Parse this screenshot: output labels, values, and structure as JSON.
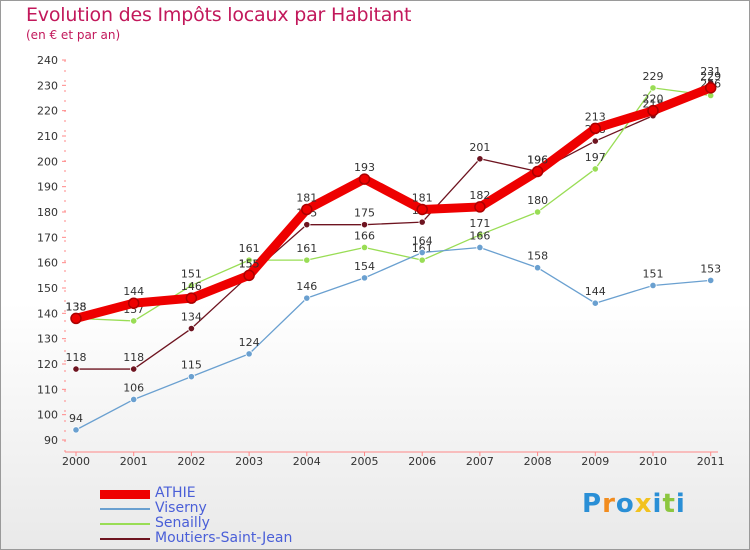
{
  "chart_data": {
    "type": "line",
    "title": "Evolution des Impôts locaux par Habitant",
    "subtitle": "(en € et par an)",
    "categories": [
      "2000",
      "2001",
      "2002",
      "2003",
      "2004",
      "2005",
      "2006",
      "2007",
      "2008",
      "2009",
      "2010",
      "2011"
    ],
    "ylim": [
      90,
      240
    ],
    "yticks": [
      90,
      100,
      110,
      120,
      130,
      140,
      150,
      160,
      170,
      180,
      190,
      200,
      210,
      220,
      230,
      240
    ],
    "series": [
      {
        "name": "Moutiers-Saint-Jean",
        "color": "#6e1420",
        "values": [
          118,
          118,
          134,
          155,
          175,
          175,
          176,
          201,
          196,
          208,
          218,
          231
        ]
      },
      {
        "name": "Senailly",
        "color": "#99dd55",
        "values": [
          138,
          137,
          151,
          161,
          161,
          166,
          161,
          171,
          180,
          197,
          229,
          226
        ]
      },
      {
        "name": "Viserny",
        "color": "#6aa0d0",
        "values": [
          94,
          106,
          115,
          124,
          146,
          154,
          164,
          166,
          158,
          144,
          151,
          153
        ]
      },
      {
        "name": "ATHIE",
        "color": "#ee0000",
        "values": [
          138,
          144,
          146,
          155,
          181,
          193,
          181,
          182,
          196,
          213,
          220,
          229
        ]
      }
    ]
  },
  "legend": {
    "items": [
      {
        "label": "ATHIE",
        "color": "#ee0000",
        "thickness": 8
      },
      {
        "label": "Viserny",
        "color": "#6aa0d0",
        "thickness": 2
      },
      {
        "label": "Senailly",
        "color": "#99dd55",
        "thickness": 2
      },
      {
        "label": "Moutiers-Saint-Jean",
        "color": "#6e1420",
        "thickness": 2
      }
    ]
  },
  "logo": {
    "letters": [
      "P",
      "r",
      "o",
      "x",
      "i",
      "t",
      "i"
    ],
    "colors": [
      "#2a8fd6",
      "#f28c1e",
      "#2a8fd6",
      "#f2c21e",
      "#2a8fd6",
      "#8cc63f",
      "#2a8fd6"
    ]
  }
}
